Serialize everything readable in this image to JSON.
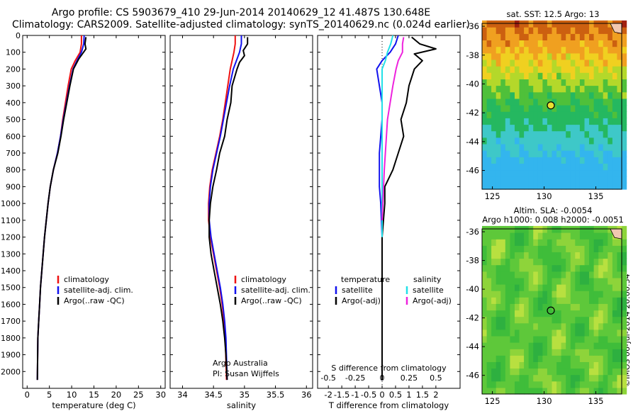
{
  "header": {
    "line1": "Argo profile: CS 5903679_410 29-Jun-2014 20140629_12 41.487S 130.648E",
    "line2": "Climatology: CARS2009. Satellite-adjusted climatology: synTS_20140629.nc (0.024d earlier)"
  },
  "sst_title": "sat. SST: 12.5 Argo: 13",
  "sla_title1": "Altim. SLA: -0.0054",
  "sla_title2": "Argo h1000: 0.008 h2000: -0.0051",
  "stamp": "©IMOS 06-Jul-2014 20:00:34",
  "colors": {
    "climatology": "#ee1111",
    "satellite": "#1111ee",
    "argo": "#000000",
    "salinity_satellite": "#22e0e8",
    "salinity_argo": "#ee22dd"
  },
  "chart_data": [
    {
      "type": "line",
      "id": "temperature",
      "xlabel": "temperature (deg C)",
      "ylabel": "",
      "xlim": [
        -1,
        31
      ],
      "ylim": [
        2100,
        0
      ],
      "xticks": [
        "0",
        "5",
        "10",
        "15",
        "20",
        "25",
        "30"
      ],
      "xtick_values": [
        0,
        5,
        10,
        15,
        20,
        25,
        30
      ],
      "yticks": [
        "0",
        "100",
        "200",
        "300",
        "400",
        "500",
        "600",
        "700",
        "800",
        "900",
        "1000",
        "1100",
        "1200",
        "1300",
        "1400",
        "1500",
        "1600",
        "1700",
        "1800",
        "1900",
        "2000"
      ],
      "ytick_values": [
        0,
        100,
        200,
        300,
        400,
        500,
        600,
        700,
        800,
        900,
        1000,
        1100,
        1200,
        1300,
        1400,
        1500,
        1600,
        1700,
        1800,
        1900,
        2000
      ],
      "legend": [
        "climatology",
        "satellite-adj. clim.",
        "Argo(..raw -QC)"
      ],
      "series": [
        {
          "name": "climatology",
          "color": "climatology",
          "x": [
            12.2,
            12.2,
            11.9,
            10.8,
            9.9,
            9.2,
            8.6,
            8.0,
            7.5,
            6.8,
            5.9,
            5.2,
            4.7,
            4.3,
            3.9,
            3.6,
            3.3,
            3.0,
            2.8,
            2.6,
            2.4,
            2.3
          ],
          "depth": [
            0,
            50,
            100,
            150,
            200,
            300,
            400,
            500,
            600,
            700,
            800,
            900,
            1000,
            1100,
            1200,
            1300,
            1400,
            1500,
            1600,
            1700,
            1800,
            2050
          ]
        },
        {
          "name": "satellite-adj. clim.",
          "color": "satellite",
          "x": [
            12.8,
            12.7,
            12.2,
            11.2,
            10.3,
            9.5,
            8.8,
            8.1,
            7.5,
            6.8,
            5.9,
            5.2,
            4.7,
            4.3,
            3.9,
            3.6,
            3.3,
            3.0,
            2.8,
            2.6,
            2.4,
            2.3
          ],
          "depth": [
            0,
            50,
            100,
            150,
            200,
            300,
            400,
            500,
            600,
            700,
            800,
            900,
            1000,
            1100,
            1200,
            1300,
            1400,
            1500,
            1600,
            1700,
            1800,
            2050
          ]
        },
        {
          "name": "Argo(..raw -QC)",
          "color": "argo",
          "x": [
            13.2,
            13.0,
            13.2,
            12.4,
            11.6,
            10.4,
            9.6,
            8.9,
            8.2,
            7.6,
            6.9,
            5.9,
            5.2,
            4.7,
            4.3,
            3.9,
            3.6,
            3.3,
            3.0,
            2.8,
            2.6,
            2.4,
            2.3
          ],
          "depth": [
            10,
            50,
            80,
            110,
            140,
            200,
            300,
            400,
            500,
            600,
            700,
            800,
            900,
            1000,
            1100,
            1200,
            1300,
            1400,
            1500,
            1600,
            1700,
            1800,
            2050
          ]
        }
      ]
    },
    {
      "type": "line",
      "id": "salinity",
      "xlabel": "salinity",
      "ylabel": "",
      "xlim": [
        33.8,
        36.1
      ],
      "ylim": [
        2100,
        0
      ],
      "xticks": [
        "34",
        "34.5",
        "35",
        "35.5",
        "36"
      ],
      "xtick_values": [
        34,
        34.5,
        35,
        35.5,
        36
      ],
      "legend": [
        "climatology",
        "satellite-adj. clim.",
        "Argo(..raw -QC)"
      ],
      "annotation": [
        "Argo Australia",
        "PI: Susan Wijffels"
      ],
      "series": [
        {
          "name": "climatology",
          "color": "climatology",
          "x": [
            34.85,
            34.85,
            34.83,
            34.8,
            34.77,
            34.73,
            34.69,
            34.65,
            34.6,
            34.54,
            34.48,
            34.44,
            34.42,
            34.42,
            34.45,
            34.5,
            34.55,
            34.6,
            34.64,
            34.67,
            34.69,
            34.71
          ],
          "depth": [
            0,
            50,
            100,
            150,
            200,
            300,
            400,
            500,
            600,
            700,
            800,
            900,
            1000,
            1100,
            1200,
            1300,
            1400,
            1500,
            1600,
            1700,
            1800,
            2050
          ]
        },
        {
          "name": "satellite-adj. clim.",
          "color": "satellite",
          "x": [
            34.95,
            34.95,
            34.92,
            34.87,
            34.82,
            34.76,
            34.71,
            34.66,
            34.61,
            34.55,
            34.49,
            34.45,
            34.43,
            34.43,
            34.46,
            34.51,
            34.56,
            34.61,
            34.65,
            34.68,
            34.7,
            34.72
          ],
          "depth": [
            0,
            50,
            100,
            150,
            200,
            300,
            400,
            500,
            600,
            700,
            800,
            900,
            1000,
            1100,
            1200,
            1300,
            1400,
            1500,
            1600,
            1700,
            1800,
            2050
          ]
        },
        {
          "name": "Argo(..raw -QC)",
          "color": "argo",
          "x": [
            35.05,
            35.05,
            34.98,
            35.0,
            34.92,
            34.88,
            34.8,
            34.78,
            34.72,
            34.68,
            34.6,
            34.55,
            34.49,
            34.45,
            34.43,
            34.43,
            34.46,
            34.51,
            34.56,
            34.61,
            34.65,
            34.68,
            34.7,
            34.72
          ],
          "depth": [
            10,
            50,
            90,
            120,
            160,
            200,
            300,
            400,
            500,
            600,
            700,
            800,
            900,
            1000,
            1100,
            1200,
            1300,
            1400,
            1500,
            1600,
            1700,
            1800,
            1900,
            2050
          ]
        }
      ]
    },
    {
      "type": "line",
      "id": "difference",
      "xlabel": "T difference from climatology",
      "xlabel2": "S difference from climatology",
      "xlim": [
        -2.4,
        2.9
      ],
      "ylim": [
        2100,
        0
      ],
      "xticks": [
        "-2",
        "-1.5",
        "-1",
        "-0.5",
        "0",
        "0.5",
        "1",
        "1.5",
        "2"
      ],
      "xtick_values": [
        -2,
        -1.5,
        -1,
        -0.5,
        0,
        0.5,
        1,
        1.5,
        2
      ],
      "xticks2": [
        "-0.5",
        "-0.25",
        "0",
        "0.25",
        "0.5"
      ],
      "xtick2_values": [
        -0.5,
        -0.25,
        0,
        0.25,
        0.5
      ],
      "s_scale": 4,
      "legend_temperature": [
        "temperature",
        "satellite",
        "Argo(-adj)"
      ],
      "legend_salinity": [
        "salinity",
        "satellite",
        "Argo(-adj)"
      ],
      "series": [
        {
          "name": "T satellite",
          "color": "satellite",
          "x": [
            0.6,
            0.5,
            0.3,
            0.0,
            -0.2,
            -0.1,
            0.0,
            0.0,
            -0.05,
            -0.1,
            -0.1,
            -0.1,
            -0.05,
            0.0,
            0.0,
            0.0,
            0.0,
            0.0,
            0.0
          ],
          "depth": [
            0,
            50,
            100,
            150,
            200,
            300,
            400,
            500,
            600,
            700,
            800,
            900,
            1000,
            1200,
            1400,
            1600,
            1800,
            1900,
            2050
          ]
        },
        {
          "name": "T Argo(-adj)",
          "color": "argo",
          "x": [
            1.1,
            1.4,
            2.0,
            1.2,
            1.5,
            1.2,
            1.0,
            0.9,
            0.7,
            0.8,
            0.6,
            0.4,
            0.1,
            0.1,
            0.0,
            0.0,
            0.0,
            0.0,
            0.0
          ],
          "depth": [
            10,
            50,
            80,
            110,
            150,
            200,
            300,
            400,
            500,
            600,
            700,
            800,
            900,
            1000,
            1200,
            1400,
            1600,
            1800,
            2050
          ]
        },
        {
          "name": "S satellite",
          "color": "salinity_satellite",
          "x": [
            0.1,
            0.08,
            0.05,
            0.03,
            0.0,
            0.0,
            0.0,
            0.0,
            0.0,
            0.0
          ],
          "depth": [
            0,
            50,
            100,
            150,
            200,
            400,
            600,
            800,
            1000,
            1200
          ]
        },
        {
          "name": "S Argo(-adj)",
          "color": "salinity_argo",
          "x": [
            0.2,
            0.19,
            0.19,
            0.15,
            0.13,
            0.1,
            0.05,
            0.02,
            0.0
          ],
          "depth": [
            10,
            50,
            100,
            150,
            200,
            300,
            500,
            800,
            1100
          ]
        }
      ]
    },
    {
      "type": "heatmap",
      "id": "sst_map",
      "title": "sat. SST: 12.5 Argo: 13",
      "xlim": [
        124,
        137.5
      ],
      "ylim": [
        -47.3,
        -35.8
      ],
      "xticks": [
        "125",
        "130",
        "135"
      ],
      "xtick_values": [
        125,
        130,
        135
      ],
      "yticks": [
        "-36",
        "-38",
        "-40",
        "-42",
        "-44",
        "-46"
      ],
      "ytick_values": [
        -36,
        -38,
        -40,
        -42,
        -44,
        -46
      ],
      "argo_position": {
        "lon": 130.648,
        "lat": -41.487
      }
    },
    {
      "type": "heatmap",
      "id": "sla_map",
      "title": "Altim. SLA: -0.0054",
      "xlim": [
        124,
        137.5
      ],
      "ylim": [
        -47.3,
        -35.8
      ],
      "xticks": [
        "125",
        "130",
        "135"
      ],
      "xtick_values": [
        125,
        130,
        135
      ],
      "yticks": [
        "-36",
        "-38",
        "-40",
        "-42",
        "-44",
        "-46"
      ],
      "ytick_values": [
        -36,
        -38,
        -40,
        -42,
        -44,
        -46
      ],
      "argo_position": {
        "lon": 130.648,
        "lat": -41.487
      }
    }
  ]
}
